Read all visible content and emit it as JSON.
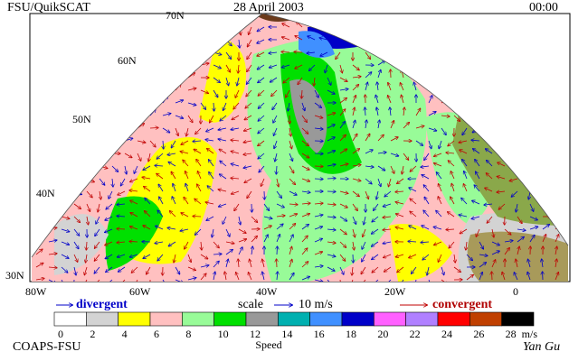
{
  "header": {
    "left": "FSU/QuikSCAT",
    "date": "28 April 2003",
    "time": "00:00"
  },
  "map": {
    "lat_labels": [
      "70N",
      "60N",
      "50N",
      "40N",
      "30N"
    ],
    "lon_labels": [
      "80W",
      "60W",
      "40W",
      "20W",
      "0"
    ]
  },
  "legend": {
    "divergent": "divergent",
    "scale": "scale",
    "scale_value": "10 m/s",
    "convergent": "convergent"
  },
  "colorbar": {
    "colors": [
      "#ffffff",
      "#d3d3d3",
      "#ffff00",
      "#ffc0c0",
      "#98fb98",
      "#00e000",
      "#999999",
      "#00b0b0",
      "#4090ff",
      "#0000c8",
      "#ff60ff",
      "#b080ff",
      "#ff0000",
      "#c04000",
      "#000000"
    ],
    "ticks": [
      0,
      2,
      4,
      6,
      8,
      10,
      12,
      14,
      16,
      18,
      20,
      22,
      24,
      26,
      28
    ],
    "unit": "m/s",
    "label": "Speed"
  },
  "footer": {
    "left": "COAPS-FSU",
    "signature": "Yan Gu"
  }
}
